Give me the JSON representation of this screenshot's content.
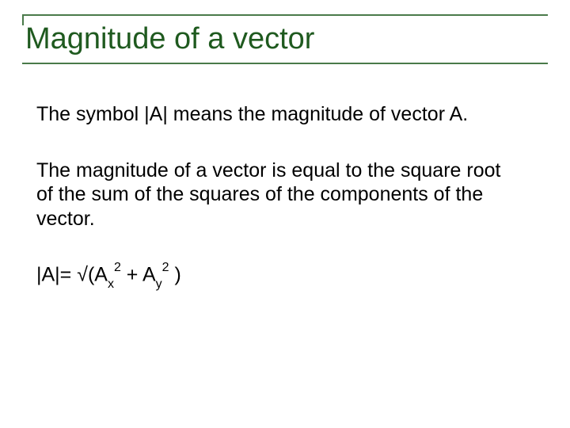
{
  "slide": {
    "title": "Magnitude of a vector",
    "title_color": "#1f5a1f",
    "title_fontsize": 38,
    "rule_color": "#4a7a4a",
    "body_color": "#000000",
    "body_fontsize": 25,
    "background_color": "#ffffff",
    "para1": "The symbol |A| means the magnitude of vector A.",
    "para2": "The magnitude of a vector is equal to the square root of the sum of the squares of the components of the vector.",
    "formula": {
      "lhs": "|A|= ",
      "radical": "√",
      "open": "(A",
      "sub1": "x",
      "sup1": "2",
      "plus": " + A",
      "sub2": "y",
      "sup2": "2",
      "close": "  )"
    }
  }
}
